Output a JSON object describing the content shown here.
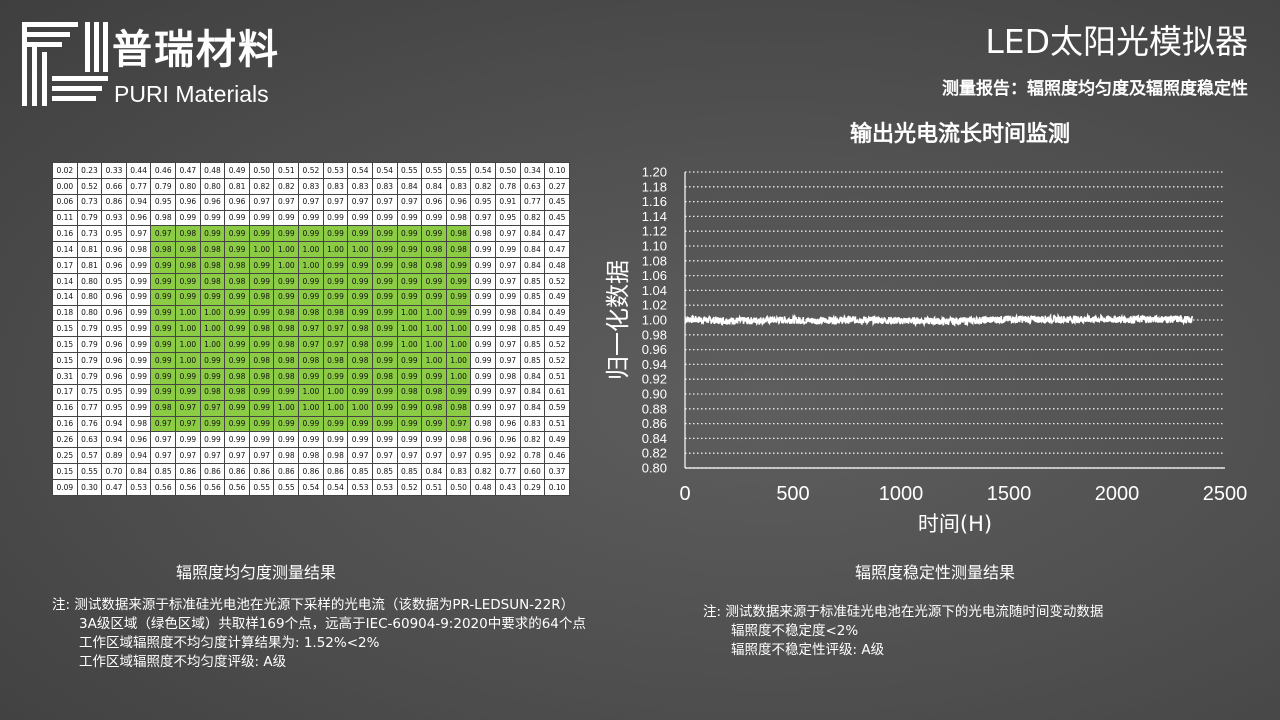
{
  "brand": {
    "name_cn": "普瑞材料",
    "name_en": "PURI Materials"
  },
  "header": {
    "title": "LED太阳光模拟器",
    "subtitle": "测量报告：辐照度均匀度及辐照度稳定性"
  },
  "uniformity": {
    "caption": "辐照度均匀度测量结果",
    "grid": [
      [
        "0.02",
        "0.23",
        "0.33",
        "0.44",
        "0.46",
        "0.47",
        "0.48",
        "0.49",
        "0.50",
        "0.51",
        "0.52",
        "0.53",
        "0.54",
        "0.54",
        "0.55",
        "0.55",
        "0.55",
        "0.54",
        "0.50",
        "0.34",
        "0.10"
      ],
      [
        "0.00",
        "0.52",
        "0.66",
        "0.77",
        "0.79",
        "0.80",
        "0.80",
        "0.81",
        "0.82",
        "0.82",
        "0.83",
        "0.83",
        "0.83",
        "0.83",
        "0.84",
        "0.84",
        "0.83",
        "0.82",
        "0.78",
        "0.63",
        "0.27"
      ],
      [
        "0.06",
        "0.73",
        "0.86",
        "0.94",
        "0.95",
        "0.96",
        "0.96",
        "0.96",
        "0.97",
        "0.97",
        "0.97",
        "0.97",
        "0.97",
        "0.97",
        "0.97",
        "0.96",
        "0.96",
        "0.95",
        "0.91",
        "0.77",
        "0.45"
      ],
      [
        "0.11",
        "0.79",
        "0.93",
        "0.96",
        "0.98",
        "0.99",
        "0.99",
        "0.99",
        "0.99",
        "0.99",
        "0.99",
        "0.99",
        "0.99",
        "0.99",
        "0.99",
        "0.99",
        "0.98",
        "0.97",
        "0.95",
        "0.82",
        "0.45"
      ],
      [
        "0.16",
        "0.73",
        "0.95",
        "0.97",
        "0.97",
        "0.98",
        "0.99",
        "0.99",
        "0.99",
        "0.99",
        "0.99",
        "0.99",
        "0.99",
        "0.99",
        "0.99",
        "0.99",
        "0.98",
        "0.98",
        "0.97",
        "0.84",
        "0.47"
      ],
      [
        "0.14",
        "0.81",
        "0.96",
        "0.98",
        "0.98",
        "0.98",
        "0.98",
        "0.99",
        "1.00",
        "1.00",
        "1.00",
        "1.00",
        "1.00",
        "0.99",
        "0.99",
        "0.98",
        "0.98",
        "0.99",
        "0.99",
        "0.84",
        "0.47"
      ],
      [
        "0.17",
        "0.81",
        "0.96",
        "0.99",
        "0.99",
        "0.98",
        "0.98",
        "0.98",
        "0.99",
        "1.00",
        "1.00",
        "0.99",
        "0.99",
        "0.99",
        "0.98",
        "0.98",
        "0.99",
        "0.99",
        "0.97",
        "0.84",
        "0.48"
      ],
      [
        "0.14",
        "0.80",
        "0.95",
        "0.99",
        "0.99",
        "0.99",
        "0.98",
        "0.98",
        "0.99",
        "0.99",
        "0.99",
        "0.99",
        "0.99",
        "0.99",
        "0.99",
        "0.99",
        "0.99",
        "0.99",
        "0.97",
        "0.85",
        "0.52"
      ],
      [
        "0.14",
        "0.80",
        "0.96",
        "0.99",
        "0.99",
        "0.99",
        "0.99",
        "0.99",
        "0.98",
        "0.99",
        "0.99",
        "0.99",
        "0.99",
        "0.99",
        "0.99",
        "0.99",
        "0.99",
        "0.99",
        "0.99",
        "0.85",
        "0.49"
      ],
      [
        "0.18",
        "0.80",
        "0.96",
        "0.99",
        "0.99",
        "1.00",
        "1.00",
        "0.99",
        "0.99",
        "0.98",
        "0.98",
        "0.98",
        "0.99",
        "0.99",
        "1.00",
        "1.00",
        "0.99",
        "0.99",
        "0.98",
        "0.84",
        "0.49"
      ],
      [
        "0.15",
        "0.79",
        "0.95",
        "0.99",
        "0.99",
        "1.00",
        "1.00",
        "0.99",
        "0.98",
        "0.98",
        "0.97",
        "0.97",
        "0.98",
        "0.99",
        "1.00",
        "1.00",
        "1.00",
        "0.99",
        "0.98",
        "0.85",
        "0.49"
      ],
      [
        "0.15",
        "0.79",
        "0.96",
        "0.99",
        "0.99",
        "1.00",
        "1.00",
        "0.99",
        "0.99",
        "0.98",
        "0.97",
        "0.97",
        "0.98",
        "0.99",
        "1.00",
        "1.00",
        "1.00",
        "0.99",
        "0.97",
        "0.85",
        "0.52"
      ],
      [
        "0.15",
        "0.79",
        "0.96",
        "0.99",
        "0.99",
        "1.00",
        "0.99",
        "0.99",
        "0.98",
        "0.98",
        "0.98",
        "0.98",
        "0.98",
        "0.99",
        "0.99",
        "1.00",
        "1.00",
        "0.99",
        "0.97",
        "0.85",
        "0.52"
      ],
      [
        "0.31",
        "0.79",
        "0.96",
        "0.99",
        "0.99",
        "0.99",
        "0.99",
        "0.98",
        "0.98",
        "0.98",
        "0.99",
        "0.99",
        "0.99",
        "0.98",
        "0.99",
        "0.99",
        "1.00",
        "0.99",
        "0.98",
        "0.84",
        "0.51"
      ],
      [
        "0.17",
        "0.75",
        "0.95",
        "0.99",
        "0.99",
        "0.99",
        "0.98",
        "0.98",
        "0.99",
        "0.99",
        "1.00",
        "1.00",
        "0.99",
        "0.99",
        "0.98",
        "0.98",
        "0.99",
        "0.99",
        "0.97",
        "0.84",
        "0.61"
      ],
      [
        "0.16",
        "0.77",
        "0.95",
        "0.99",
        "0.98",
        "0.97",
        "0.97",
        "0.99",
        "0.99",
        "1.00",
        "1.00",
        "1.00",
        "1.00",
        "0.99",
        "0.99",
        "0.98",
        "0.98",
        "0.99",
        "0.97",
        "0.84",
        "0.59"
      ],
      [
        "0.16",
        "0.76",
        "0.94",
        "0.98",
        "0.97",
        "0.97",
        "0.99",
        "0.99",
        "0.99",
        "0.99",
        "0.99",
        "0.99",
        "0.99",
        "0.99",
        "0.99",
        "0.99",
        "0.97",
        "0.98",
        "0.96",
        "0.83",
        "0.51"
      ],
      [
        "0.26",
        "0.63",
        "0.94",
        "0.96",
        "0.97",
        "0.99",
        "0.99",
        "0.99",
        "0.99",
        "0.99",
        "0.99",
        "0.99",
        "0.99",
        "0.99",
        "0.99",
        "0.99",
        "0.98",
        "0.96",
        "0.96",
        "0.82",
        "0.49"
      ],
      [
        "0.25",
        "0.57",
        "0.89",
        "0.94",
        "0.97",
        "0.97",
        "0.97",
        "0.97",
        "0.97",
        "0.98",
        "0.98",
        "0.98",
        "0.97",
        "0.97",
        "0.97",
        "0.97",
        "0.97",
        "0.95",
        "0.92",
        "0.78",
        "0.46"
      ],
      [
        "0.15",
        "0.55",
        "0.70",
        "0.84",
        "0.85",
        "0.86",
        "0.86",
        "0.86",
        "0.86",
        "0.86",
        "0.86",
        "0.86",
        "0.85",
        "0.85",
        "0.85",
        "0.84",
        "0.83",
        "0.82",
        "0.77",
        "0.60",
        "0.37"
      ],
      [
        "0.09",
        "0.30",
        "0.47",
        "0.53",
        "0.56",
        "0.56",
        "0.56",
        "0.56",
        "0.55",
        "0.55",
        "0.54",
        "0.54",
        "0.53",
        "0.53",
        "0.52",
        "0.51",
        "0.50",
        "0.48",
        "0.43",
        "0.29",
        "0.10"
      ]
    ],
    "green_rows": [
      4,
      16
    ],
    "green_cols": [
      4,
      16
    ],
    "note_lines": [
      "注:  测试数据来源于标准硅光电池在光源下采样的光电流（该数据为PR-LEDSUN-22R）",
      "3A级区域（绿色区域）共取样169个点，远高于IEC-60904-9:2020中要求的64个点",
      "工作区域辐照度不均匀度计算结果为:  1.52%<2%",
      "工作区域辐照度不均匀度评级:  A级"
    ],
    "highlight_color": "#8ccc45"
  },
  "stability": {
    "caption": "辐照度稳定性测量结果",
    "note_lines": [
      "注:  测试数据来源于标准硅光电池在光源下的光电流随时间变动数据",
      "辐照度不稳定度<2%",
      "辐照度不稳定性评级:  A级"
    ]
  },
  "chart_data": {
    "type": "line",
    "title": "输出光电流长时间监测",
    "xlabel": "时间(H)",
    "ylabel": "归一化数据",
    "xlim": [
      0,
      2500
    ],
    "ylim": [
      0.8,
      1.2
    ],
    "x_ticks": [
      "0",
      "500",
      "1000",
      "1500",
      "2000",
      "2500"
    ],
    "y_ticks": [
      "0.80",
      "0.82",
      "0.84",
      "0.86",
      "0.88",
      "0.90",
      "0.92",
      "0.94",
      "0.96",
      "0.98",
      "1.00",
      "1.02",
      "1.04",
      "1.06",
      "1.08",
      "1.10",
      "1.12",
      "1.14",
      "1.16",
      "1.18",
      "1.20"
    ],
    "grid": "horizontal-dotted",
    "series": [
      {
        "x": [
          0,
          100,
          200,
          300,
          400,
          500,
          600,
          700,
          800,
          900,
          1000,
          1100,
          1200,
          1300,
          1400,
          1500,
          1600,
          1700,
          1800,
          1900,
          2000,
          2100,
          2200,
          2300,
          2350
        ],
        "y": [
          1.001,
          1.0,
          0.999,
          0.999,
          1.0,
          1.0,
          0.999,
          1.0,
          1.0,
          1.0,
          0.999,
          0.999,
          0.998,
          0.999,
          1.0,
          1.001,
          1.001,
          1.001,
          1.001,
          1.001,
          1.001,
          1.001,
          1.001,
          1.001,
          1.0
        ],
        "noise": 0.005,
        "color": "#ffffff"
      }
    ]
  }
}
